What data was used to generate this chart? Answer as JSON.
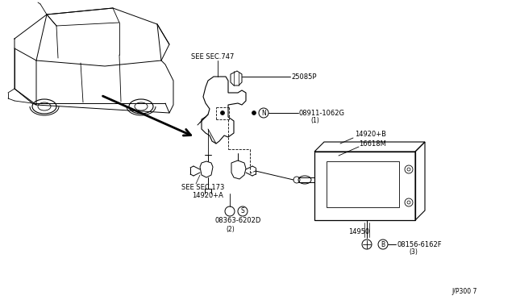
{
  "bg_color": "#ffffff",
  "fig_width": 6.4,
  "fig_height": 3.72,
  "dpi": 100,
  "watermark": "J/P300 7",
  "labels": {
    "see_sec_747": "SEE SEC.747",
    "part_25085P": "25085P",
    "part_N_08911": "08911-1062G",
    "part_N_circle": "N",
    "part_N_sub": "(1)",
    "part_14920B": "14920+B",
    "part_16618M": "16618M",
    "see_sec_173": "SEE SEC.173",
    "part_14920A": "14920+A",
    "part_S_circle": "S",
    "part_S_08363": "08363-6202D",
    "part_S_sub": "(2)",
    "part_14950": "14950",
    "part_B_circle": "B",
    "part_B_08156": "08156-6162F",
    "part_B_sub": "(3)"
  },
  "font_size": 6.0,
  "line_color": "#000000",
  "gray_color": "#888888"
}
